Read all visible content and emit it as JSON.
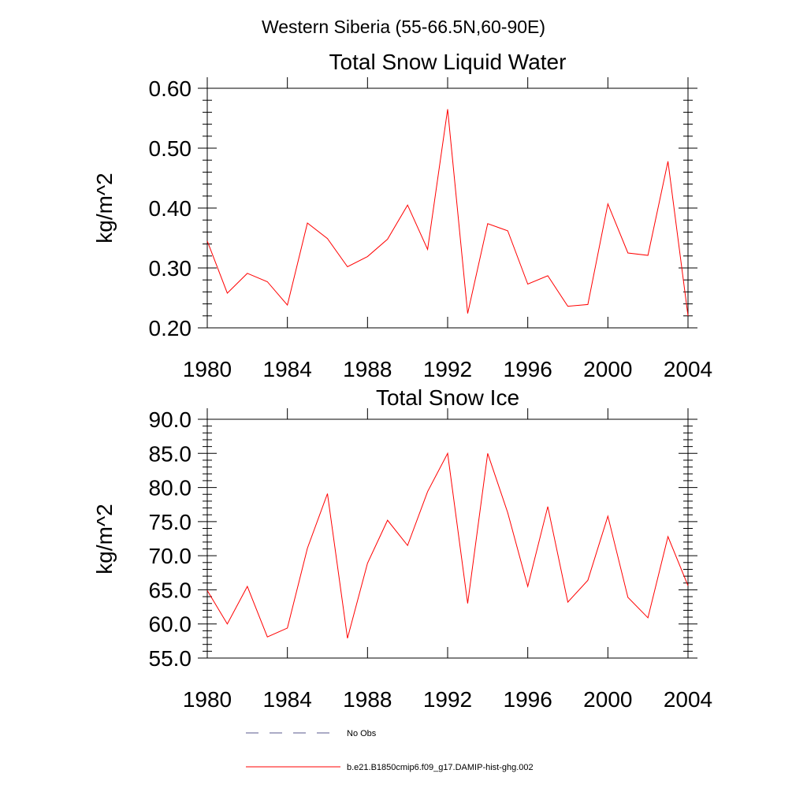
{
  "page": {
    "suptitle": "Western Siberia (55-66.5N,60-90E)"
  },
  "legend": {
    "placement": "bottom",
    "entries": [
      {
        "label": "No Obs",
        "color": "#5a5a8c",
        "style": "dashed"
      },
      {
        "label": "b.e21.B1850cmip6.f09_g17.DAMIP-hist-ghg.002",
        "color": "#ff0000",
        "style": "solid"
      }
    ]
  },
  "chart_data": [
    {
      "type": "line",
      "title": "Total Snow Liquid Water",
      "xlabel": "",
      "ylabel": "kg/m^2",
      "xlim": [
        1980,
        2004
      ],
      "ylim": [
        0.2,
        0.6
      ],
      "xticks": [
        "1980",
        "1984",
        "1988",
        "1992",
        "1996",
        "2000",
        "2004"
      ],
      "yticks": [
        "0.20",
        "0.30",
        "0.40",
        "0.50",
        "0.60"
      ],
      "grid": false,
      "x": [
        1980,
        1981,
        1982,
        1983,
        1984,
        1985,
        1986,
        1987,
        1988,
        1989,
        1990,
        1991,
        1992,
        1993,
        1994,
        1995,
        1996,
        1997,
        1998,
        1999,
        2000,
        2001,
        2002,
        2003,
        2004
      ],
      "series": [
        {
          "name": "b.e21.B1850cmip6.f09_g17.DAMIP-hist-ghg.002",
          "color": "#ff0000",
          "values": [
            0.345,
            0.258,
            0.291,
            0.277,
            0.238,
            0.375,
            0.349,
            0.302,
            0.319,
            0.348,
            0.405,
            0.331,
            0.565,
            0.224,
            0.374,
            0.362,
            0.273,
            0.287,
            0.236,
            0.239,
            0.407,
            0.325,
            0.321,
            0.478,
            0.22
          ]
        }
      ]
    },
    {
      "type": "line",
      "title": "Total Snow Ice",
      "xlabel": "",
      "ylabel": "kg/m^2",
      "xlim": [
        1980,
        2004
      ],
      "ylim": [
        55,
        90
      ],
      "xticks": [
        "1980",
        "1984",
        "1988",
        "1992",
        "1996",
        "2000",
        "2004"
      ],
      "yticks": [
        "55.0",
        "60.0",
        "65.0",
        "70.0",
        "75.0",
        "80.0",
        "85.0",
        "90.0"
      ],
      "grid": false,
      "x": [
        1980,
        1981,
        1982,
        1983,
        1984,
        1985,
        1986,
        1987,
        1988,
        1989,
        1990,
        1991,
        1992,
        1993,
        1994,
        1995,
        1996,
        1997,
        1998,
        1999,
        2000,
        2001,
        2002,
        2003,
        2004
      ],
      "series": [
        {
          "name": "b.e21.B1850cmip6.f09_g17.DAMIP-hist-ghg.002",
          "color": "#ff0000",
          "values": [
            64.9,
            60.0,
            65.5,
            58.1,
            59.4,
            71.1,
            79.1,
            57.9,
            68.9,
            75.2,
            71.5,
            79.4,
            85.0,
            63.0,
            85.0,
            76.3,
            65.5,
            77.2,
            63.2,
            66.4,
            75.8,
            63.9,
            60.9,
            72.8,
            65.6
          ]
        }
      ]
    }
  ]
}
